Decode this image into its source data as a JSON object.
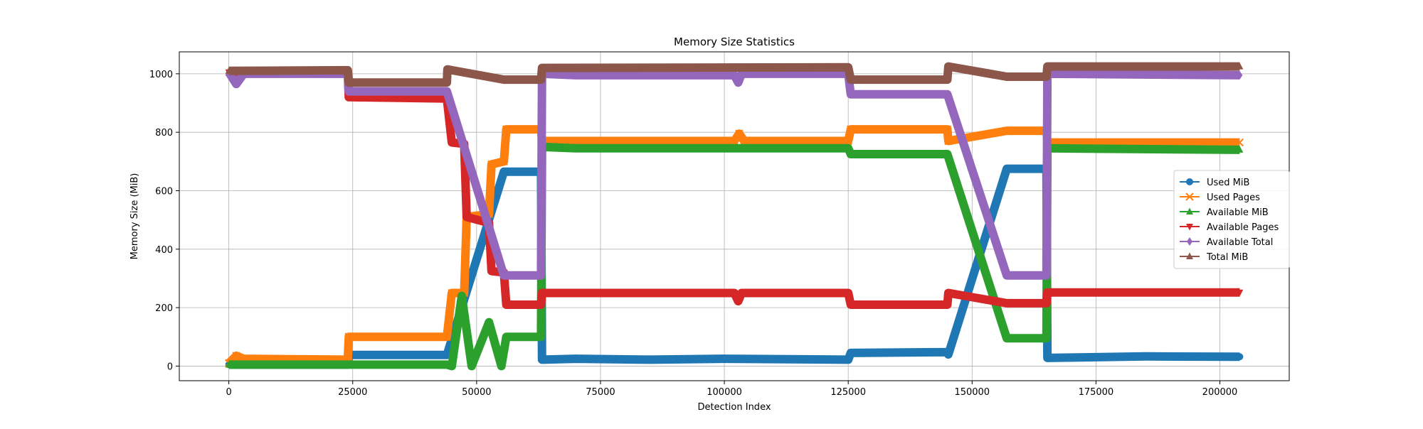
{
  "chart_data": {
    "type": "line",
    "title": "Memory Size Statistics",
    "xlabel": "Detection Index",
    "ylabel": "Memory Size (MiB)",
    "xlim": [
      -10000,
      214000
    ],
    "ylim": [
      -50,
      1075
    ],
    "xticks": [
      0,
      25000,
      50000,
      75000,
      100000,
      125000,
      150000,
      175000,
      200000
    ],
    "yticks": [
      0,
      200,
      400,
      600,
      800,
      1000
    ],
    "grid": true,
    "legend_position": "right",
    "series": [
      {
        "name": "Used MiB",
        "color": "#1f77b4",
        "marker": "circle",
        "points": [
          [
            0,
            5
          ],
          [
            24000,
            5
          ],
          [
            24200,
            38
          ],
          [
            44000,
            38
          ],
          [
            55500,
            665
          ],
          [
            63000,
            665
          ],
          [
            63200,
            22
          ],
          [
            70000,
            25
          ],
          [
            85000,
            22
          ],
          [
            100000,
            25
          ],
          [
            125000,
            22
          ],
          [
            125500,
            45
          ],
          [
            145000,
            48
          ],
          [
            145200,
            40
          ],
          [
            157000,
            675
          ],
          [
            165000,
            675
          ],
          [
            165200,
            28
          ],
          [
            185000,
            33
          ],
          [
            204000,
            32
          ]
        ]
      },
      {
        "name": "Used Pages",
        "color": "#ff7f0e",
        "marker": "x",
        "points": [
          [
            0,
            10
          ],
          [
            1500,
            35
          ],
          [
            3000,
            25
          ],
          [
            24000,
            22
          ],
          [
            24200,
            100
          ],
          [
            44000,
            100
          ],
          [
            45000,
            250
          ],
          [
            47500,
            250
          ],
          [
            48000,
            510
          ],
          [
            52500,
            520
          ],
          [
            53000,
            690
          ],
          [
            55500,
            700
          ],
          [
            56000,
            810
          ],
          [
            63000,
            810
          ],
          [
            63200,
            770
          ],
          [
            102000,
            770
          ],
          [
            103000,
            795
          ],
          [
            104000,
            770
          ],
          [
            125000,
            770
          ],
          [
            125500,
            810
          ],
          [
            145000,
            810
          ],
          [
            145200,
            770
          ],
          [
            157000,
            805
          ],
          [
            165000,
            805
          ],
          [
            165200,
            765
          ],
          [
            204000,
            765
          ]
        ]
      },
      {
        "name": "Available MiB",
        "color": "#2ca02c",
        "marker": "triangle-up",
        "points": [
          [
            0,
            5
          ],
          [
            44000,
            5
          ],
          [
            45000,
            0
          ],
          [
            47000,
            240
          ],
          [
            49000,
            0
          ],
          [
            52500,
            150
          ],
          [
            55000,
            0
          ],
          [
            56000,
            100
          ],
          [
            63000,
            100
          ],
          [
            63200,
            750
          ],
          [
            70000,
            745
          ],
          [
            125000,
            745
          ],
          [
            125500,
            725
          ],
          [
            145000,
            725
          ],
          [
            157000,
            95
          ],
          [
            165000,
            95
          ],
          [
            165200,
            745
          ],
          [
            204000,
            740
          ]
        ]
      },
      {
        "name": "Available Pages",
        "color": "#d62728",
        "marker": "triangle-down",
        "points": [
          [
            0,
            1005
          ],
          [
            24000,
            1005
          ],
          [
            24200,
            920
          ],
          [
            44000,
            915
          ],
          [
            45000,
            765
          ],
          [
            47500,
            760
          ],
          [
            48000,
            510
          ],
          [
            52500,
            490
          ],
          [
            53000,
            325
          ],
          [
            55500,
            320
          ],
          [
            56000,
            210
          ],
          [
            63000,
            210
          ],
          [
            63200,
            250
          ],
          [
            102000,
            250
          ],
          [
            102800,
            222
          ],
          [
            103500,
            250
          ],
          [
            125000,
            250
          ],
          [
            125500,
            210
          ],
          [
            145000,
            210
          ],
          [
            145200,
            250
          ],
          [
            157000,
            215
          ],
          [
            165000,
            215
          ],
          [
            165200,
            252
          ],
          [
            204000,
            252
          ]
        ]
      },
      {
        "name": "Available Total",
        "color": "#9467bd",
        "marker": "diamond",
        "points": [
          [
            0,
            1005
          ],
          [
            1500,
            965
          ],
          [
            3000,
            1000
          ],
          [
            24000,
            1000
          ],
          [
            24200,
            940
          ],
          [
            44000,
            940
          ],
          [
            55500,
            310
          ],
          [
            63000,
            310
          ],
          [
            63200,
            1000
          ],
          [
            70000,
            995
          ],
          [
            102000,
            995
          ],
          [
            102800,
            970
          ],
          [
            103500,
            1000
          ],
          [
            125000,
            1000
          ],
          [
            125500,
            930
          ],
          [
            145000,
            930
          ],
          [
            157000,
            310
          ],
          [
            165000,
            310
          ],
          [
            165200,
            1000
          ],
          [
            204000,
            995
          ]
        ]
      },
      {
        "name": "Total MiB",
        "color": "#8c564b",
        "marker": "triangle-up",
        "points": [
          [
            0,
            1010
          ],
          [
            24000,
            1012
          ],
          [
            24200,
            970
          ],
          [
            44000,
            970
          ],
          [
            44100,
            1015
          ],
          [
            55500,
            980
          ],
          [
            63000,
            980
          ],
          [
            63200,
            1020
          ],
          [
            125000,
            1022
          ],
          [
            125500,
            980
          ],
          [
            145000,
            980
          ],
          [
            145200,
            1025
          ],
          [
            157000,
            990
          ],
          [
            165000,
            990
          ],
          [
            165200,
            1025
          ],
          [
            204000,
            1025
          ]
        ]
      }
    ]
  }
}
